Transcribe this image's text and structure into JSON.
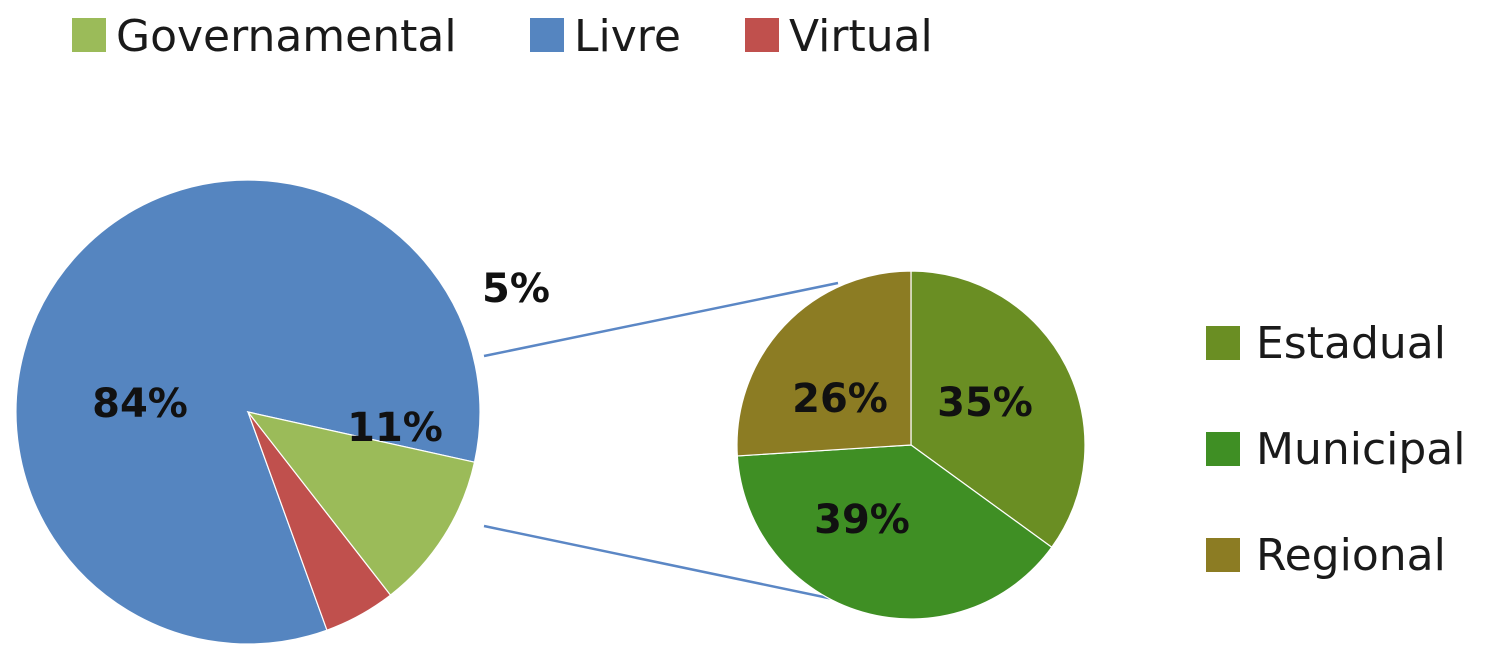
{
  "chart_data": [
    {
      "type": "pie",
      "role": "main",
      "categories": [
        "Livre",
        "Virtual",
        "Governamental"
      ],
      "values": [
        84,
        5,
        11
      ],
      "labels": [
        "84%",
        "5%",
        "11%"
      ],
      "colors": [
        "#5585c0",
        "#c0504d",
        "#9bbb59"
      ],
      "legend": {
        "placement": "top",
        "order": [
          "Governamental",
          "Livre",
          "Virtual"
        ],
        "colors": [
          "#9bbb59",
          "#5585c0",
          "#c0504d"
        ]
      }
    },
    {
      "type": "pie",
      "role": "breakdown",
      "breakdown_of": "Governamental",
      "categories": [
        "Estadual",
        "Municipal",
        "Regional"
      ],
      "values": [
        35,
        39,
        26
      ],
      "labels": [
        "35%",
        "39%",
        "26%"
      ],
      "colors": [
        "#6a8e23",
        "#3f8f24",
        "#8c7c23"
      ],
      "legend": {
        "placement": "right",
        "order": [
          "Estadual",
          "Municipal",
          "Regional"
        ]
      }
    }
  ],
  "connector_color": "#5b87c5"
}
